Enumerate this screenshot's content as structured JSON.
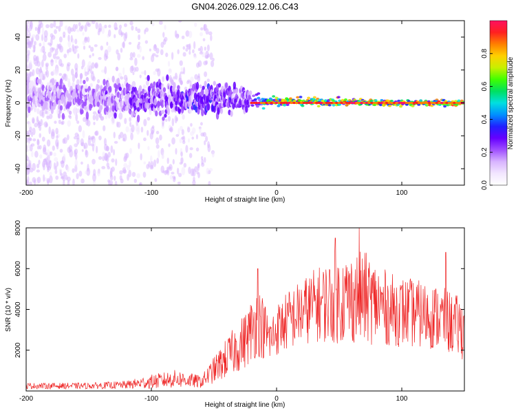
{
  "figure_title": "GN04.2026.029.12.06.C43",
  "colors": {
    "snr_line": "#ee2222",
    "axis": "#000000",
    "colormap": [
      "#ffffff",
      "#f2e6ff",
      "#d8b4ff",
      "#a050ff",
      "#6600ff",
      "#2020ff",
      "#0090ff",
      "#00e0e0",
      "#00e060",
      "#40ff00",
      "#c8f000",
      "#ffd000",
      "#ff8000",
      "#ff2020",
      "#ff1060"
    ]
  },
  "chart_data": [
    {
      "type": "heatmap",
      "name": "spectrogram",
      "title": "",
      "xlabel": "Height of straight line (km)",
      "ylabel": "Frequency (Hz)",
      "xlim": [
        -200,
        150
      ],
      "ylim": [
        -50,
        50
      ],
      "xticks": [
        -200,
        -100,
        0,
        100
      ],
      "yticks": [
        -40,
        -20,
        0,
        20,
        40
      ],
      "xtick_labels": [
        "-200",
        "-100",
        "0",
        "100"
      ],
      "ytick_labels": [
        "-40",
        "-20",
        "0",
        "20",
        "40"
      ],
      "colorbar": {
        "label": "Normalized spectral amplitude",
        "range": [
          0,
          1
        ],
        "ticks": [
          0.0,
          0.2,
          0.4,
          0.6,
          0.8
        ],
        "tick_labels": [
          "0.0",
          "0.2",
          "0.4",
          "0.6",
          "0.8"
        ]
      },
      "description_points": [
        {
          "x": -200,
          "center_hz": 5,
          "spread_hz": 8,
          "peak_amplitude": 0.2
        },
        {
          "x": -100,
          "center_hz": 2,
          "spread_hz": 8,
          "peak_amplitude": 0.3
        },
        {
          "x": -50,
          "center_hz": 3,
          "spread_hz": 7,
          "peak_amplitude": 0.35
        },
        {
          "x": -20,
          "center_hz": 2,
          "spread_hz": 5,
          "peak_amplitude": 0.3
        },
        {
          "x": 0,
          "center_hz": 1,
          "spread_hz": 2,
          "peak_amplitude": 0.9
        },
        {
          "x": 100,
          "center_hz": 0,
          "spread_hz": 1.5,
          "peak_amplitude": 0.95
        },
        {
          "x": 150,
          "center_hz": 0,
          "spread_hz": 1.5,
          "peak_amplitude": 0.95
        }
      ]
    },
    {
      "type": "line",
      "name": "snr",
      "title": "",
      "xlabel": "Height of straight line (km)",
      "ylabel": "SNR (10 * v/v)",
      "xlim": [
        -200,
        150
      ],
      "ylim": [
        0,
        8000
      ],
      "xticks": [
        -200,
        -100,
        0,
        100
      ],
      "yticks": [
        2000,
        4000,
        6000,
        8000
      ],
      "xtick_labels": [
        "-200",
        "-100",
        "0",
        "100"
      ],
      "ytick_labels": [
        "2000",
        "4000",
        "6000",
        "8000"
      ],
      "series": [
        {
          "name": "SNR",
          "envelope_x": [
            -200,
            -150,
            -120,
            -100,
            -80,
            -60,
            -40,
            -25,
            -15,
            -5,
            0,
            10,
            30,
            50,
            70,
            90,
            110,
            130,
            150
          ],
          "envelope_y": [
            250,
            250,
            300,
            450,
            600,
            450,
            1600,
            2500,
            3500,
            2500,
            3000,
            3500,
            4200,
            4500,
            4600,
            4000,
            3800,
            3600,
            3000
          ],
          "noise_amplitude": [
            150,
            150,
            200,
            350,
            450,
            300,
            1000,
            1400,
            1800,
            1200,
            1300,
            1500,
            1800,
            2200,
            2300,
            1800,
            1700,
            1600,
            1500
          ],
          "notable_peaks": [
            {
              "x": -15,
              "y": 6000
            },
            {
              "x": 47,
              "y": 7500
            },
            {
              "x": 66,
              "y": 8000
            },
            {
              "x": 135,
              "y": 6800
            }
          ]
        }
      ]
    }
  ]
}
